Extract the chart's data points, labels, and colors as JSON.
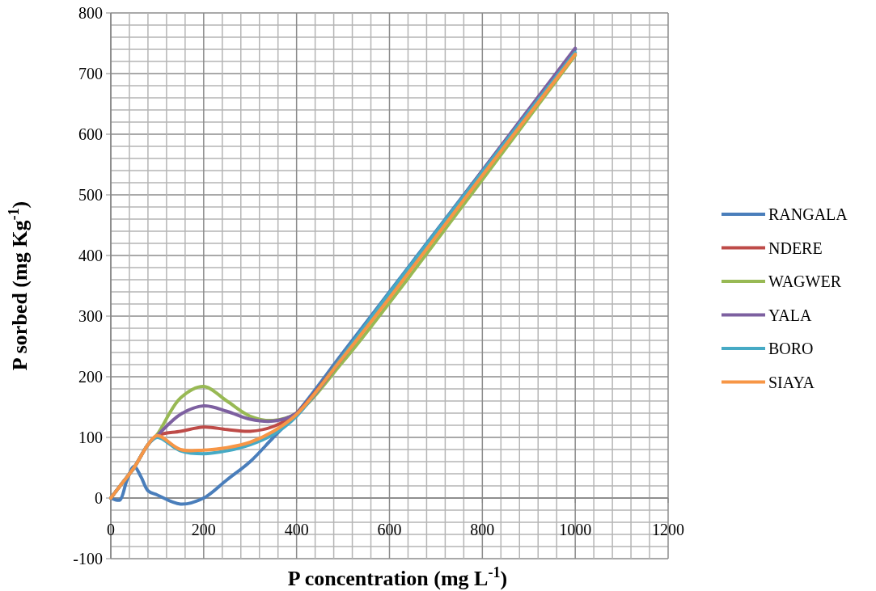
{
  "chart_data": {
    "type": "line",
    "xlabel": "P concentration (mg L$^{-1}$)",
    "ylabel": "P sorbed (mg Kg$^{-1}$)",
    "xlim": [
      0,
      1200
    ],
    "ylim": [
      -100,
      800
    ],
    "xticks": [
      0,
      {
        "value": 40,
        "label": null
      },
      {
        "value": 80,
        "label": null
      },
      {
        "value": 120,
        "label": null
      },
      {
        "value": 160,
        "label": null
      },
      200,
      {
        "value": 240,
        "label": null
      },
      {
        "value": 280,
        "label": null
      },
      {
        "value": 320,
        "label": null
      },
      {
        "value": 360,
        "label": null
      },
      400,
      {
        "value": 440,
        "label": null
      },
      {
        "value": 480,
        "label": null
      },
      {
        "value": 520,
        "label": null
      },
      {
        "value": 560,
        "label": null
      },
      600,
      {
        "value": 640,
        "label": null
      },
      {
        "value": 680,
        "label": null
      },
      {
        "value": 720,
        "label": null
      },
      {
        "value": 760,
        "label": null
      },
      800,
      {
        "value": 840,
        "label": null
      },
      {
        "value": 880,
        "label": null
      },
      {
        "value": 920,
        "label": null
      },
      {
        "value": 960,
        "label": null
      },
      1000,
      {
        "value": 1040,
        "label": null
      },
      {
        "value": 1080,
        "label": null
      },
      {
        "value": 1120,
        "label": null
      },
      {
        "value": 1160,
        "label": null
      },
      1200
    ],
    "yticks": [
      -100,
      {
        "value": -80,
        "label": null
      },
      {
        "value": -60,
        "label": null
      },
      {
        "value": -40,
        "label": null
      },
      {
        "value": -20,
        "label": null
      },
      0,
      {
        "value": 20,
        "label": null
      },
      {
        "value": 40,
        "label": null
      },
      {
        "value": 60,
        "label": null
      },
      {
        "value": 80,
        "label": null
      },
      100,
      {
        "value": 120,
        "label": null
      },
      {
        "value": 140,
        "label": null
      },
      {
        "value": 160,
        "label": null
      },
      {
        "value": 180,
        "label": null
      },
      200,
      {
        "value": 220,
        "label": null
      },
      {
        "value": 240,
        "label": null
      },
      {
        "value": 260,
        "label": null
      },
      {
        "value": 280,
        "label": null
      },
      300,
      {
        "value": 320,
        "label": null
      },
      {
        "value": 340,
        "label": null
      },
      {
        "value": 360,
        "label": null
      },
      {
        "value": 380,
        "label": null
      },
      400,
      {
        "value": 420,
        "label": null
      },
      {
        "value": 440,
        "label": null
      },
      {
        "value": 460,
        "label": null
      },
      {
        "value": 480,
        "label": null
      },
      500,
      {
        "value": 520,
        "label": null
      },
      {
        "value": 540,
        "label": null
      },
      {
        "value": 560,
        "label": null
      },
      {
        "value": 580,
        "label": null
      },
      600,
      {
        "value": 620,
        "label": null
      },
      {
        "value": 640,
        "label": null
      },
      {
        "value": 660,
        "label": null
      },
      {
        "value": 680,
        "label": null
      },
      700,
      {
        "value": 720,
        "label": null
      },
      {
        "value": 740,
        "label": null
      },
      {
        "value": 760,
        "label": null
      },
      {
        "value": 780,
        "label": null
      },
      800
    ],
    "grid": true,
    "legend": "right",
    "line_style": "solid",
    "x": [
      0,
      25,
      50,
      80,
      100,
      150,
      200,
      250,
      300,
      350,
      400,
      500,
      600,
      800,
      1000
    ],
    "series": [
      {
        "name": "RANGALA",
        "color": "#4a7ebb",
        "x": [
          0,
          10,
          20,
          35,
          50,
          65,
          80,
          100,
          150,
          200,
          250,
          300,
          350,
          400,
          500,
          600,
          800,
          1000
        ],
        "values": [
          0,
          -3,
          -3,
          30,
          52,
          35,
          12,
          5,
          -10,
          0,
          30,
          60,
          100,
          140,
          240,
          340,
          540,
          740
        ]
      },
      {
        "name": "NDERE",
        "color": "#be4b48",
        "values": [
          0,
          25,
          50,
          88,
          103,
          110,
          117,
          113,
          110,
          118,
          140,
          235,
          335,
          null,
          null
        ]
      },
      {
        "name": "WAGWER",
        "color": "#98b954",
        "values": [
          0,
          25,
          50,
          88,
          105,
          165,
          184,
          160,
          135,
          128,
          140,
          225,
          322,
          525,
          730
        ]
      },
      {
        "name": "YALA",
        "color": "#7d60a0",
        "values": [
          0,
          25,
          50,
          88,
          103,
          138,
          152,
          143,
          130,
          127,
          140,
          232,
          335,
          540,
          742
        ]
      },
      {
        "name": "BORO",
        "color": "#46aac5",
        "values": [
          0,
          25,
          50,
          88,
          100,
          78,
          73,
          78,
          88,
          105,
          135,
          235,
          338,
          538,
          735
        ]
      },
      {
        "name": "SIAYA",
        "color": "#f79646",
        "values": [
          0,
          25,
          50,
          88,
          103,
          80,
          79,
          83,
          92,
          110,
          138,
          232,
          330,
          532,
          732
        ]
      }
    ]
  }
}
